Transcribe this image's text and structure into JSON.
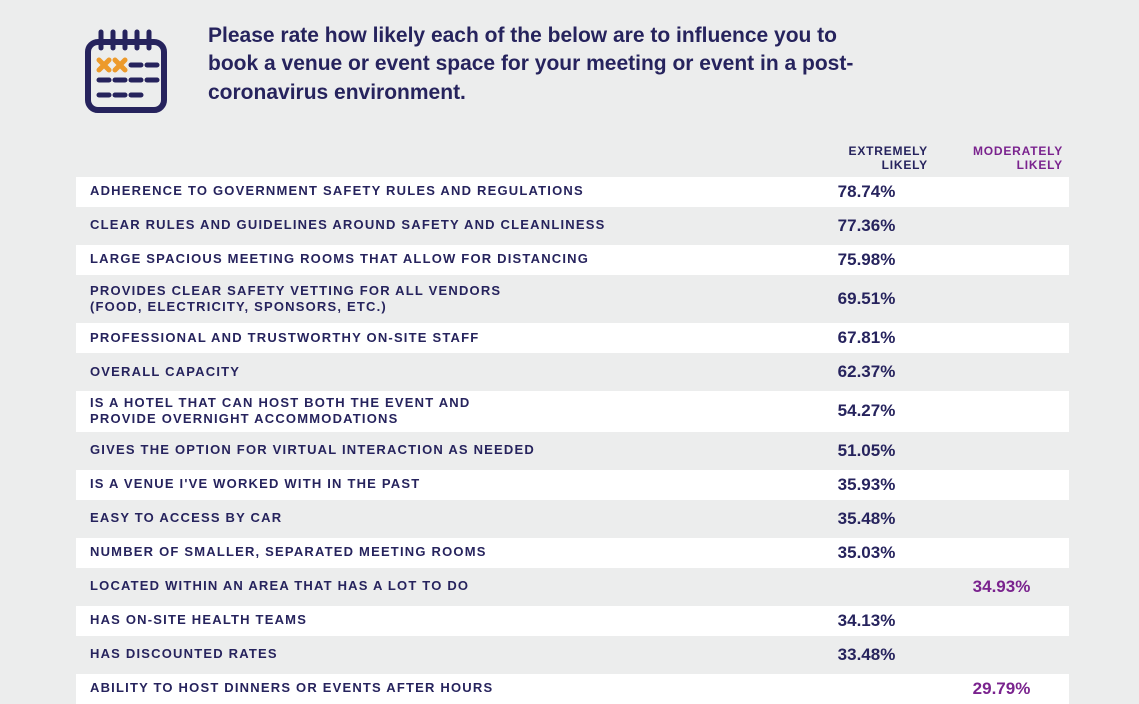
{
  "colors": {
    "background": "#eceded",
    "row_alt": "#ffffff",
    "text_primary": "#26235d",
    "extremely_header": "#26235d",
    "moderately_header": "#7a238e",
    "extremely_value": "#26235d",
    "moderately_value": "#7a238e",
    "label": "#26235d",
    "icon_stroke": "#26235d",
    "icon_accent": "#ed9a2b"
  },
  "question": "Please rate how likely each of the below are to influence you to book a venue or event space for your meeting or event in a post-coronavirus environment.",
  "columns": {
    "extremely": "EXTREMELY LIKELY",
    "moderately": "MODERATELY LIKELY"
  },
  "rows": [
    {
      "label": "ADHERENCE TO GOVERNMENT SAFETY RULES AND REGULATIONS",
      "extremely": "78.74%",
      "moderately": ""
    },
    {
      "label": "CLEAR RULES AND GUIDELINES AROUND SAFETY AND CLEANLINESS",
      "extremely": "77.36%",
      "moderately": ""
    },
    {
      "label": "LARGE SPACIOUS MEETING ROOMS THAT ALLOW FOR DISTANCING",
      "extremely": "75.98%",
      "moderately": ""
    },
    {
      "label": "PROVIDES CLEAR SAFETY VETTING FOR ALL VENDORS\n(FOOD, ELECTRICITY, SPONSORS, ETC.)",
      "extremely": "69.51%",
      "moderately": ""
    },
    {
      "label": "PROFESSIONAL AND TRUSTWORTHY ON-SITE STAFF",
      "extremely": "67.81%",
      "moderately": ""
    },
    {
      "label": "OVERALL CAPACITY",
      "extremely": "62.37%",
      "moderately": ""
    },
    {
      "label": "IS A HOTEL THAT CAN HOST BOTH THE EVENT AND\nPROVIDE OVERNIGHT ACCOMMODATIONS",
      "extremely": "54.27%",
      "moderately": ""
    },
    {
      "label": "GIVES THE OPTION FOR VIRTUAL INTERACTION AS NEEDED",
      "extremely": "51.05%",
      "moderately": ""
    },
    {
      "label": "IS A VENUE I'VE WORKED WITH IN THE PAST",
      "extremely": "35.93%",
      "moderately": ""
    },
    {
      "label": "EASY TO ACCESS BY CAR",
      "extremely": "35.48%",
      "moderately": ""
    },
    {
      "label": "NUMBER OF SMALLER, SEPARATED MEETING ROOMS",
      "extremely": "35.03%",
      "moderately": ""
    },
    {
      "label": "LOCATED WITHIN AN AREA THAT HAS A LOT TO DO",
      "extremely": "",
      "moderately": "34.93%"
    },
    {
      "label": "HAS ON-SITE HEALTH TEAMS",
      "extremely": "34.13%",
      "moderately": ""
    },
    {
      "label": "HAS DISCOUNTED RATES",
      "extremely": "33.48%",
      "moderately": ""
    },
    {
      "label": "ABILITY TO HOST DINNERS OR EVENTS AFTER HOURS",
      "extremely": "",
      "moderately": "29.79%"
    }
  ],
  "typography": {
    "question_fontsize": 21,
    "label_fontsize": 13,
    "value_fontsize": 17,
    "header_fontsize": 12
  }
}
